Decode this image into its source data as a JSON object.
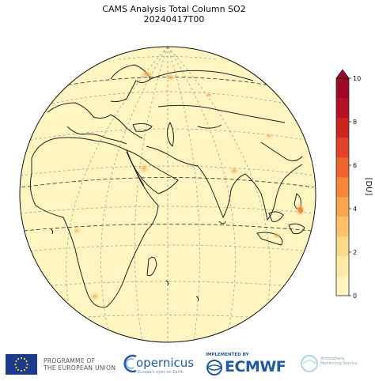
{
  "title": {
    "line1": "CAMS Analysis Total Column SO2",
    "line2": "20240417T00"
  },
  "colorbar": {
    "label": "[DU]",
    "ticks": [
      "0",
      "2",
      "4",
      "6",
      "8",
      "10"
    ],
    "min": 0,
    "max": 10,
    "colors": [
      "#fff5c0",
      "#fee9a4",
      "#fdd98a",
      "#fcc36a",
      "#faa64c",
      "#f6873a",
      "#ee6430",
      "#e14328",
      "#cb2520",
      "#b50f22",
      "#9c0a28"
    ],
    "extend": "max"
  },
  "map": {
    "projection": "orthographic",
    "ocean_color": "#fff5c0",
    "hotspots": [
      {
        "name": "Iceland region",
        "value": 3.0
      },
      {
        "name": "Northern Russia",
        "value": 2.5
      },
      {
        "name": "Persian Gulf",
        "value": 3.0
      },
      {
        "name": "Northern India / Bangladesh",
        "value": 3.5
      },
      {
        "name": "Philippines",
        "value": 5.0
      },
      {
        "name": "Indonesia",
        "value": 2.5
      },
      {
        "name": "Southern Africa",
        "value": 2.0
      }
    ]
  },
  "footer": {
    "eu_line1": "PROGRAMME OF",
    "eu_line2": "THE EUROPEAN UNION",
    "copernicus_name": "opernicus",
    "copernicus_tag": "Europe's eyes on Earth",
    "ecmwf_implemented": "IMPLEMENTED BY",
    "ecmwf_name": "ECMWF",
    "atmosphere_line1": "Atmosphere",
    "atmosphere_line2": "Monitoring Service"
  }
}
